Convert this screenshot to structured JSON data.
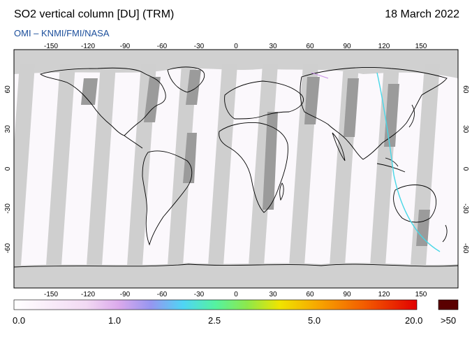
{
  "header": {
    "title": "SO2 vertical column [DU] (TRM)",
    "date": "18 March 2022",
    "source": "OMI  –  KNMI/FMI/NASA"
  },
  "map": {
    "projection": "equirectangular",
    "lon_ticks": [
      "-150",
      "-120",
      "-90",
      "-60",
      "-30",
      "0",
      "30",
      "60",
      "90",
      "120",
      "150"
    ],
    "lat_ticks": [
      "60",
      "30",
      "0",
      "-30",
      "-60"
    ],
    "colors": {
      "background_no_data": "#d0d0d0",
      "orbit_gap": "#9b9b9b",
      "valid_data": "#fbf8fc",
      "coastline": "#000000"
    }
  },
  "colorbar": {
    "labels": [
      "0.0",
      "1.0",
      "2.5",
      "5.0",
      "20.0"
    ],
    "overflow_label": ">50",
    "stops": [
      "#ffffff",
      "#f2d9f3",
      "#dba9ec",
      "#9696f0",
      "#4fd5f5",
      "#55f2a0",
      "#8ee84a",
      "#f0e400",
      "#f7a300",
      "#f35c00",
      "#e10000"
    ],
    "overflow_color": "#5a0000"
  }
}
